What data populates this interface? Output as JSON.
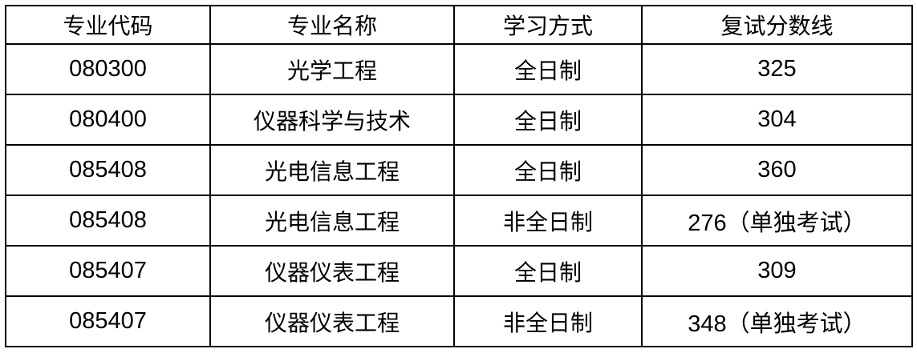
{
  "headers": [
    "专业代码",
    "专业名称",
    "学习方式",
    "复试分数线"
  ],
  "rows": [
    [
      "080300",
      "光学工程",
      "全日制",
      "325"
    ],
    [
      "080400",
      "仪器科学与技术",
      "全日制",
      "304"
    ],
    [
      "085408",
      "光电信息工程",
      "全日制",
      "360"
    ],
    [
      "085408",
      "光电信息工程",
      "非全日制",
      "276（单独考试）"
    ],
    [
      "085407",
      "仪器仪表工程",
      "全日制",
      "309"
    ],
    [
      "085407",
      "仪器仪表工程",
      "非全日制",
      "348（单独考试）"
    ]
  ]
}
